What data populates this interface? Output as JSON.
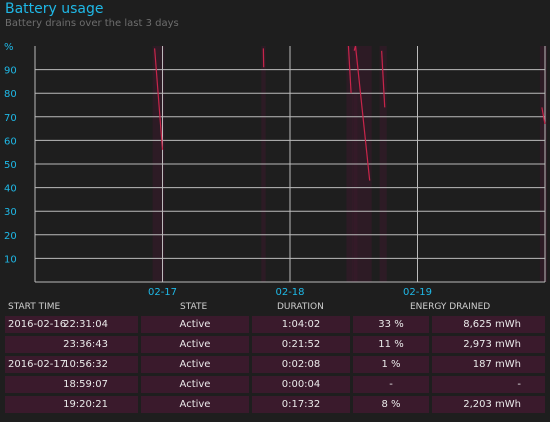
{
  "header": {
    "title": "Battery usage",
    "subtitle": "Battery drains over the last 3 days"
  },
  "chart_data": {
    "type": "line",
    "ylabel": "%",
    "ylim": [
      0,
      100
    ],
    "yticks": [
      "90",
      "80",
      "70",
      "60",
      "50",
      "40",
      "30",
      "20",
      "10"
    ],
    "xticks": [
      "02-17",
      "02-18",
      "02-19"
    ],
    "grid": true,
    "colors": {
      "line": "#c8254a",
      "grid": "#bbbbbb",
      "accent": "#1fb8e6",
      "band": "#3a1a2c"
    },
    "series": [
      {
        "x": [
          "2016-02-16 22:31",
          "2016-02-17 00:00"
        ],
        "y": [
          99,
          56
        ]
      },
      {
        "x": [
          "2016-02-17 18:59",
          "2016-02-17 19:03"
        ],
        "y": [
          99,
          91
        ]
      },
      {
        "x": [
          "2016-02-18 11:00",
          "2016-02-18 11:30"
        ],
        "y": [
          100,
          80
        ]
      },
      {
        "x": [
          "2016-02-18 12:05",
          "2016-02-18 12:20"
        ],
        "y": [
          98,
          100
        ]
      },
      {
        "x": [
          "2016-02-18 12:20",
          "2016-02-18 15:00"
        ],
        "y": [
          100,
          43
        ]
      },
      {
        "x": [
          "2016-02-18 17:15",
          "2016-02-18 17:50"
        ],
        "y": [
          98,
          74
        ]
      },
      {
        "x": [
          "2016-02-19 23:25",
          "2016-02-19 23:59"
        ],
        "y": [
          74,
          67
        ]
      }
    ]
  },
  "table": {
    "headers": [
      "START TIME",
      "STATE",
      "DURATION",
      "ENERGY DRAINED"
    ],
    "rows": [
      {
        "date": "2016-02-16",
        "time": "22:31:04",
        "state": "Active",
        "duration": "1:04:02",
        "percent": "33 %",
        "energy": "8,625 mWh"
      },
      {
        "date": "",
        "time": "23:36:43",
        "state": "Active",
        "duration": "0:21:52",
        "percent": "11 %",
        "energy": "2,973 mWh"
      },
      {
        "date": "2016-02-17",
        "time": "10:56:32",
        "state": "Active",
        "duration": "0:02:08",
        "percent": "1 %",
        "energy": "187 mWh"
      },
      {
        "date": "",
        "time": "18:59:07",
        "state": "Active",
        "duration": "0:00:04",
        "percent": "-",
        "energy": "-"
      },
      {
        "date": "",
        "time": "19:20:21",
        "state": "Active",
        "duration": "0:17:32",
        "percent": "8 %",
        "energy": "2,203 mWh"
      }
    ]
  }
}
